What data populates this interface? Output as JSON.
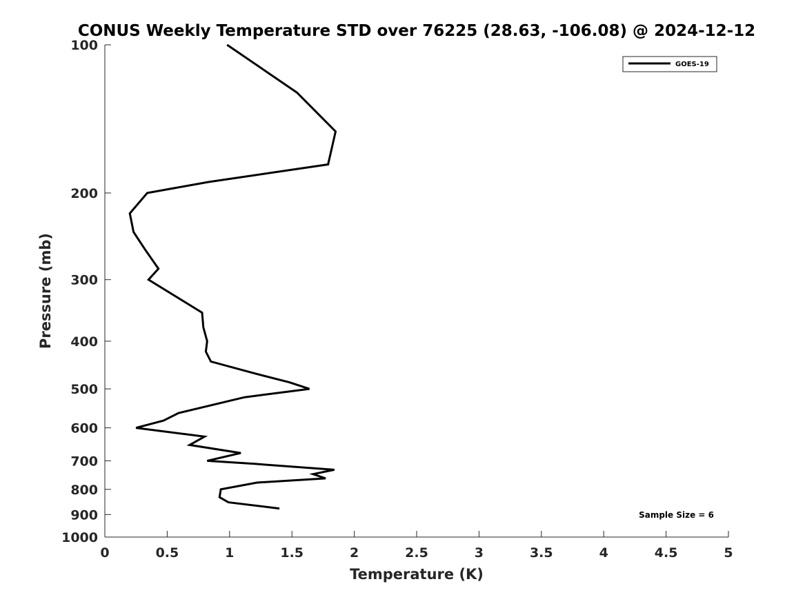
{
  "chart_data": {
    "type": "line",
    "title": "CONUS Weekly Temperature STD over 76225 (28.63, -106.08) @ 2024-12-12",
    "xlabel": "Temperature (K)",
    "ylabel": "Pressure (mb)",
    "xlim": [
      0,
      5
    ],
    "ylim": [
      100,
      1000
    ],
    "y_scale": "log",
    "y_reversed": true,
    "x_ticks": [
      "0",
      "0.5",
      "1",
      "1.5",
      "2",
      "2.5",
      "3",
      "3.5",
      "4",
      "4.5",
      "5"
    ],
    "y_ticks": [
      "100",
      "200",
      "300",
      "400",
      "500",
      "600",
      "700",
      "800",
      "900",
      "1000"
    ],
    "grid": false,
    "legend_position": "top-right",
    "series": [
      {
        "name": "GOES-19",
        "color": "#000000",
        "points": [
          [
            0.98,
            100
          ],
          [
            1.54,
            125
          ],
          [
            1.85,
            150
          ],
          [
            1.79,
            175
          ],
          [
            0.83,
            190
          ],
          [
            0.34,
            200
          ],
          [
            0.2,
            220
          ],
          [
            0.23,
            240
          ],
          [
            0.32,
            260
          ],
          [
            0.43,
            285
          ],
          [
            0.35,
            300
          ],
          [
            0.78,
            350
          ],
          [
            0.79,
            375
          ],
          [
            0.82,
            400
          ],
          [
            0.81,
            420
          ],
          [
            0.85,
            440
          ],
          [
            1.2,
            465
          ],
          [
            1.48,
            485
          ],
          [
            1.64,
            500
          ],
          [
            1.12,
            520
          ],
          [
            0.59,
            560
          ],
          [
            0.47,
            580
          ],
          [
            0.25,
            600
          ],
          [
            0.8,
            625
          ],
          [
            0.68,
            650
          ],
          [
            1.09,
            675
          ],
          [
            0.82,
            700
          ],
          [
            1.2,
            710
          ],
          [
            1.84,
            730
          ],
          [
            1.67,
            745
          ],
          [
            1.77,
            760
          ],
          [
            1.22,
            775
          ],
          [
            0.93,
            800
          ],
          [
            0.92,
            830
          ],
          [
            0.99,
            850
          ],
          [
            1.4,
            875
          ]
        ]
      }
    ],
    "annotation": "Sample Size = 6"
  }
}
